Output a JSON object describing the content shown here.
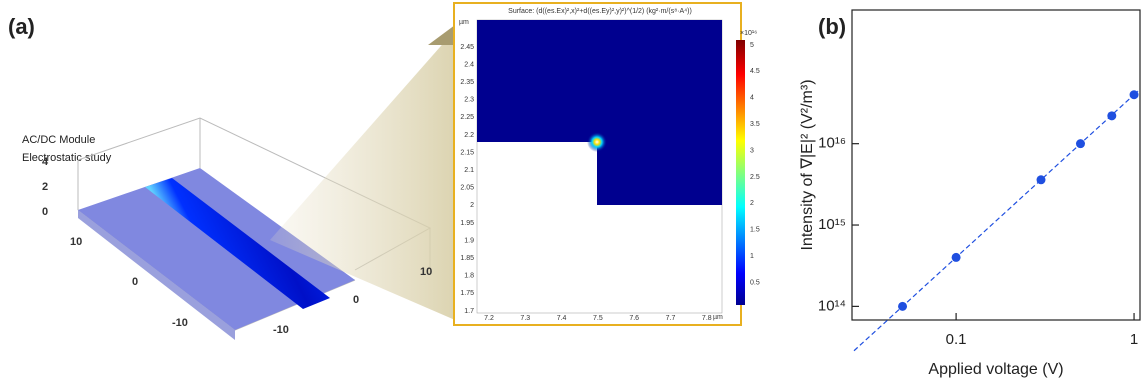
{
  "panel_a": {
    "label": "(a)",
    "module": "AC/DC Module",
    "study": "Electrostatic study",
    "z_tick_labels": [
      "4",
      "2",
      "0"
    ],
    "left_axis_labels": [
      "10",
      "0",
      "-10"
    ],
    "right_axis_labels": [
      "-10",
      "0",
      "10"
    ],
    "inset": {
      "title": "Surface: (d((es.Ex)²,x)²+d((es.Ey)²,y)²)^(1/2) (kg²·m/(s⁸·A⁴))",
      "y_unit": "µm",
      "x_unit": "µm",
      "y_tick_labels": [
        "2.45",
        "2.4",
        "2.35",
        "2.3",
        "2.25",
        "2.2",
        "2.15",
        "2.1",
        "2.05",
        "2",
        "1.95",
        "1.9",
        "1.85",
        "1.8",
        "1.75",
        "1.7"
      ],
      "x_tick_labels": [
        "7.2",
        "7.3",
        "7.4",
        "7.5",
        "7.6",
        "7.7",
        "7.8"
      ],
      "colorbar_exponent": "×10¹⁶",
      "colorbar_tick_labels": [
        "5",
        "4.5",
        "4",
        "3.5",
        "3",
        "2.5",
        "2",
        "1.5",
        "1",
        "0.5"
      ]
    }
  },
  "chart_data": {
    "type": "scatter",
    "panel_label": "(b)",
    "x_label": "Applied voltage (V)",
    "y_label": "Intensity of ∇|E|² (V²/m³)",
    "x": [
      0.05,
      0.1,
      0.3,
      0.5,
      0.75,
      1
    ],
    "values": [
      100000000000000.0,
      400000000000000.0,
      3600000000000000.0,
      1e+16,
      2.2e+16,
      4e+16
    ],
    "color": "#1f4fe0",
    "xlog": true,
    "ylog": true,
    "fit_line": "dashed",
    "xlim": [
      0.026,
      1.08
    ],
    "ylim": [
      68000000000000.0,
      4.4e+17
    ],
    "xticks": [
      0.1,
      1
    ],
    "yticks": [
      {
        "value": 100000000000000.0,
        "label": "10¹⁴"
      },
      {
        "value": 1000000000000000.0,
        "label": "10¹⁵"
      },
      {
        "value": 1e+16,
        "label": "10¹⁶"
      }
    ]
  }
}
